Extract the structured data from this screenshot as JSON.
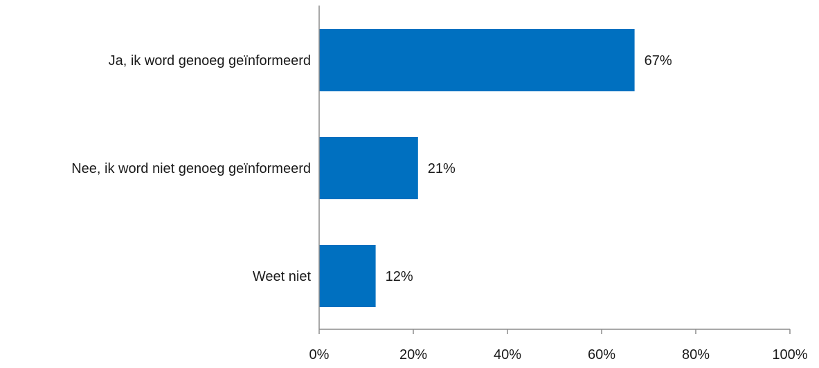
{
  "chart_data": {
    "type": "bar",
    "orientation": "horizontal",
    "title": "",
    "xlabel": "",
    "ylabel": "",
    "categories": [
      "Ja, ik word genoeg geïnformeerd",
      "Nee, ik word niet genoeg geïnformeerd",
      "Weet niet"
    ],
    "values": [
      67,
      21,
      12
    ],
    "value_labels": [
      "67%",
      "21%",
      "12%"
    ],
    "xlim": [
      0,
      100
    ],
    "x_ticks": [
      0,
      20,
      40,
      60,
      80,
      100
    ],
    "x_tick_labels": [
      "0%",
      "20%",
      "40%",
      "60%",
      "80%",
      "100%"
    ],
    "grid": false,
    "legend": "none",
    "bar_color": "#0070C0",
    "axis_color": "#8c8c8c"
  }
}
